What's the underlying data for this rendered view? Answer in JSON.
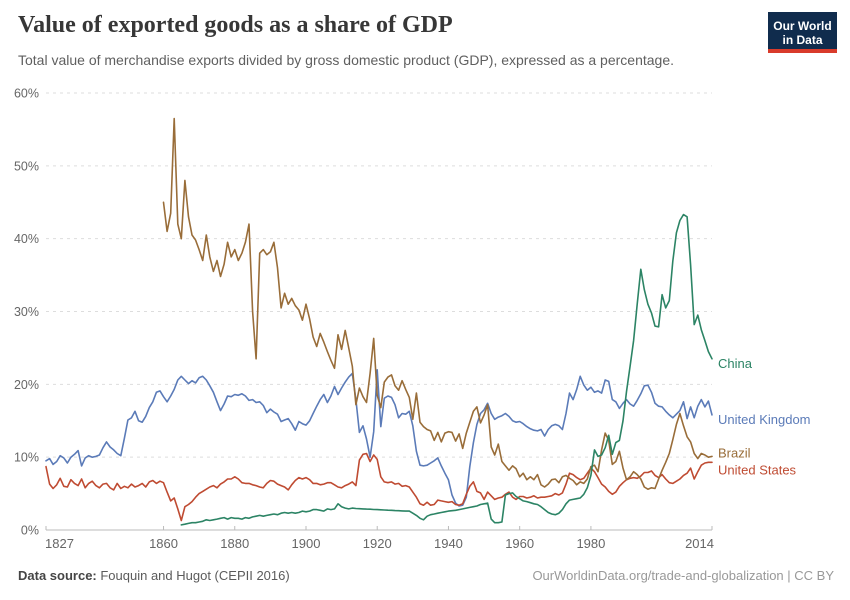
{
  "header": {
    "title": "Value of exported goods as a share of GDP",
    "subtitle": "Total value of merchandise exports divided by gross domestic product (GDP), expressed as a percentage.",
    "logo": {
      "line1": "Our World",
      "line2": "in Data",
      "bg_color": "#102C4D",
      "stripe_color": "#D93B2B"
    }
  },
  "footer": {
    "source_label": "Data source:",
    "source_value": " Fouquin and Hugot (CEPII 2016)",
    "link": "OurWorldinData.org/trade-and-globalization | CC BY"
  },
  "chart_data": {
    "type": "line",
    "title": "Value of exported goods as a share of GDP",
    "xlabel": "",
    "ylabel": "",
    "x_axis": {
      "min": 1827,
      "max": 2014,
      "ticks": [
        1827,
        1860,
        1880,
        1900,
        1920,
        1940,
        1960,
        1980,
        2014
      ]
    },
    "y_axis": {
      "min": 0,
      "max": 60,
      "ticks": [
        0,
        10,
        20,
        30,
        40,
        50,
        60
      ],
      "unit": "%",
      "grid": "dashed"
    },
    "legend_position": "right-end-labels",
    "colors": {
      "grid": "#dddddd",
      "axis": "#bbbbbb",
      "tick_text": "#666666"
    },
    "series": [
      {
        "name": "United Kingdom",
        "color": "#5B7BB8",
        "label_dy": 5,
        "start": 1827,
        "values": [
          9.5,
          9.8,
          9.0,
          9.4,
          10.2,
          9.9,
          9.2,
          10.0,
          10.4,
          10.9,
          8.8,
          9.9,
          10.2,
          10.0,
          10.1,
          10.3,
          11.3,
          12.1,
          11.4,
          11.0,
          10.5,
          10.2,
          12.6,
          15.1,
          15.4,
          16.3,
          15.0,
          14.8,
          15.6,
          16.8,
          17.6,
          18.9,
          19.1,
          18.3,
          17.6,
          18.4,
          19.3,
          20.6,
          21.1,
          20.6,
          20.1,
          20.5,
          20.2,
          20.9,
          21.1,
          20.6,
          19.8,
          18.9,
          17.6,
          16.4,
          17.3,
          18.4,
          18.3,
          18.6,
          18.5,
          18.7,
          18.4,
          17.8,
          17.9,
          17.5,
          17.6,
          17.1,
          16.1,
          16.6,
          16.2,
          15.9,
          14.9,
          15.1,
          15.3,
          14.6,
          13.7,
          14.9,
          14.6,
          14.4,
          15.0,
          16.0,
          17.0,
          17.9,
          18.6,
          17.5,
          18.4,
          19.7,
          18.6,
          19.5,
          20.3,
          21.0,
          21.5,
          17.9,
          13.4,
          14.3,
          12.5,
          10.0,
          13.5,
          22.0,
          14.2,
          18.1,
          18.4,
          18.2,
          17.2,
          15.4,
          16.0,
          15.9,
          16.3,
          14.3,
          10.8,
          8.9,
          8.8,
          8.9,
          9.2,
          9.5,
          9.9,
          8.8,
          7.8,
          6.9,
          4.8,
          3.7,
          3.3,
          3.4,
          4.5,
          8.7,
          12.0,
          14.5,
          16.0,
          16.5,
          17.4,
          16.0,
          15.2,
          15.5,
          15.7,
          16.0,
          15.6,
          15.0,
          14.8,
          14.9,
          14.6,
          14.2,
          13.9,
          13.7,
          13.6,
          13.8,
          12.9,
          13.8,
          14.3,
          14.5,
          14.3,
          13.8,
          16.0,
          18.8,
          17.9,
          19.3,
          21.1,
          19.9,
          19.2,
          19.6,
          18.9,
          19.1,
          18.8,
          20.6,
          20.4,
          17.9,
          17.6,
          16.7,
          17.4,
          17.9,
          17.3,
          17.0,
          17.8,
          18.7,
          19.8,
          19.9,
          18.9,
          17.4,
          17.0,
          16.9,
          16.3,
          15.8,
          15.4,
          15.9,
          16.4,
          17.6,
          15.3,
          16.9,
          15.4,
          17.0,
          17.9,
          16.9,
          17.7,
          15.8
        ]
      },
      {
        "name": "United States",
        "color": "#BF4B32",
        "label_dy": 8,
        "start": 1827,
        "values": [
          8.7,
          6.3,
          5.7,
          6.2,
          7.1,
          6.0,
          5.9,
          6.9,
          6.4,
          6.1,
          7.0,
          5.8,
          6.4,
          6.7,
          6.1,
          5.8,
          6.3,
          6.4,
          5.8,
          5.5,
          6.4,
          5.7,
          6.0,
          5.8,
          6.3,
          5.9,
          6.1,
          6.4,
          5.9,
          6.6,
          6.8,
          6.4,
          6.7,
          6.5,
          5.2,
          4.0,
          4.4,
          2.9,
          1.3,
          3.2,
          3.5,
          3.9,
          4.5,
          5.0,
          5.3,
          5.6,
          5.9,
          6.1,
          5.8,
          6.3,
          6.6,
          7.0,
          7.0,
          7.3,
          7.0,
          6.5,
          6.4,
          6.4,
          6.2,
          6.1,
          5.9,
          5.8,
          6.4,
          6.8,
          6.7,
          6.3,
          6.1,
          5.9,
          5.5,
          6.2,
          6.8,
          7.2,
          7.0,
          7.2,
          6.9,
          6.4,
          6.4,
          6.2,
          6.3,
          6.5,
          6.5,
          6.2,
          5.9,
          5.8,
          6.1,
          6.3,
          6.6,
          6.1,
          9.6,
          10.4,
          10.5,
          9.4,
          10.3,
          9.7,
          7.3,
          6.6,
          6.5,
          6.6,
          6.3,
          6.4,
          6.0,
          6.1,
          5.9,
          5.2,
          4.5,
          3.6,
          3.4,
          3.8,
          3.4,
          3.5,
          4.1,
          4.0,
          3.9,
          3.8,
          3.9,
          3.5,
          3.4,
          3.6,
          4.9,
          6.0,
          6.6,
          5.3,
          5.1,
          4.2,
          5.2,
          4.7,
          4.2,
          4.4,
          4.5,
          4.9,
          5.2,
          4.5,
          4.2,
          4.6,
          4.6,
          4.4,
          4.5,
          4.7,
          4.4,
          4.5,
          4.5,
          4.6,
          4.7,
          5.0,
          4.8,
          5.1,
          6.3,
          7.8,
          7.6,
          7.2,
          6.9,
          7.1,
          7.8,
          8.5,
          8.0,
          7.2,
          6.3,
          5.9,
          5.3,
          4.9,
          5.2,
          6.0,
          6.5,
          6.9,
          7.1,
          7.2,
          7.1,
          7.4,
          7.9,
          7.9,
          8.1,
          7.5,
          7.2,
          7.6,
          7.0,
          6.5,
          6.4,
          6.7,
          7.0,
          7.5,
          7.8,
          8.5,
          7.0,
          8.0,
          8.9,
          9.2,
          9.3,
          9.3
        ]
      },
      {
        "name": "Brazil",
        "color": "#996D39",
        "label_dy": -3,
        "start": 1860,
        "values": [
          45.0,
          41.0,
          43.5,
          56.5,
          42.0,
          40.0,
          48.0,
          43.0,
          40.5,
          39.8,
          38.5,
          37.0,
          40.5,
          37.5,
          35.5,
          37.0,
          34.8,
          36.5,
          39.5,
          37.5,
          38.5,
          37.0,
          38.0,
          39.5,
          42.0,
          30.0,
          23.5,
          38.0,
          38.5,
          37.8,
          38.2,
          39.5,
          36.0,
          30.5,
          32.5,
          31.0,
          31.8,
          30.8,
          30.2,
          28.8,
          31.0,
          29.0,
          26.5,
          25.2,
          27.0,
          25.8,
          24.5,
          23.3,
          22.2,
          26.8,
          24.8,
          27.4,
          25.0,
          22.5,
          17.2,
          19.5,
          18.3,
          17.5,
          21.5,
          26.3,
          18.5,
          16.8,
          20.3,
          21.0,
          21.3,
          19.8,
          19.2,
          20.5,
          19.3,
          18.2,
          15.2,
          18.8,
          14.8,
          14.2,
          13.8,
          13.6,
          12.3,
          13.4,
          12.1,
          13.3,
          13.5,
          13.4,
          12.2,
          13.2,
          11.2,
          13.3,
          14.8,
          16.3,
          16.9,
          14.7,
          15.8,
          17.2,
          11.4,
          10.3,
          11.8,
          9.4,
          8.8,
          8.2,
          8.8,
          8.4,
          7.3,
          7.8,
          6.9,
          7.3,
          6.9,
          7.6,
          6.2,
          5.9,
          6.3,
          6.9,
          7.0,
          6.5,
          7.3,
          7.5,
          7.1,
          6.8,
          6.2,
          6.6,
          6.4,
          7.0,
          8.7,
          8.9,
          8.0,
          11.0,
          13.3,
          12.3,
          9.0,
          9.4,
          10.8,
          8.5,
          6.9,
          7.3,
          8.0,
          7.6,
          7.0,
          5.9,
          5.6,
          5.8,
          5.7,
          7.0,
          8.2,
          9.3,
          10.5,
          12.4,
          14.5,
          16.0,
          14.3,
          12.8,
          12.1,
          10.5,
          9.8,
          10.5,
          10.3,
          10.0,
          10.1
        ]
      },
      {
        "name": "China",
        "color": "#2C8465",
        "label_dy": 5,
        "start": 1865,
        "values": [
          0.7,
          0.8,
          0.9,
          1.0,
          1.0,
          1.1,
          1.2,
          1.4,
          1.3,
          1.4,
          1.5,
          1.6,
          1.7,
          1.5,
          1.7,
          1.6,
          1.6,
          1.5,
          1.7,
          1.6,
          1.8,
          1.9,
          2.0,
          1.9,
          2.0,
          2.1,
          2.2,
          2.1,
          2.3,
          2.4,
          2.3,
          2.4,
          2.3,
          2.4,
          2.6,
          2.5,
          2.6,
          2.8,
          2.8,
          2.7,
          2.6,
          2.9,
          2.8,
          2.9,
          3.6,
          3.2,
          3.0,
          2.9,
          3.0,
          2.95,
          2.92,
          2.9,
          2.87,
          2.85,
          2.82,
          2.8,
          2.77,
          2.75,
          2.72,
          2.7,
          2.67,
          2.65,
          2.62,
          2.6,
          2.6,
          2.3,
          2.0,
          1.6,
          1.4,
          1.9,
          2.1,
          2.2,
          2.3,
          2.4,
          2.5,
          2.6,
          2.65,
          2.7,
          2.8,
          2.9,
          3.0,
          3.1,
          3.2,
          3.3,
          3.5,
          3.6,
          3.7,
          1.5,
          1.0,
          1.0,
          1.1,
          4.8,
          5.0,
          5.1,
          4.6,
          4.3,
          4.0,
          3.9,
          3.75,
          3.6,
          3.5,
          3.2,
          2.8,
          2.4,
          2.2,
          2.1,
          2.3,
          2.8,
          3.6,
          4.1,
          4.2,
          4.3,
          4.4,
          4.9,
          5.8,
          7.5,
          11.0,
          10.1,
          10.3,
          11.3,
          13.0,
          10.4,
          12.0,
          12.3,
          15.0,
          19.0,
          22.5,
          26.0,
          31.0,
          35.8,
          33.0,
          31.0,
          29.8,
          28.0,
          27.9,
          32.3,
          30.5,
          31.5,
          36.9,
          40.8,
          42.5,
          43.3,
          43.0,
          36.4,
          28.2,
          29.5,
          27.5,
          26.0,
          24.5,
          23.5
        ]
      }
    ]
  }
}
